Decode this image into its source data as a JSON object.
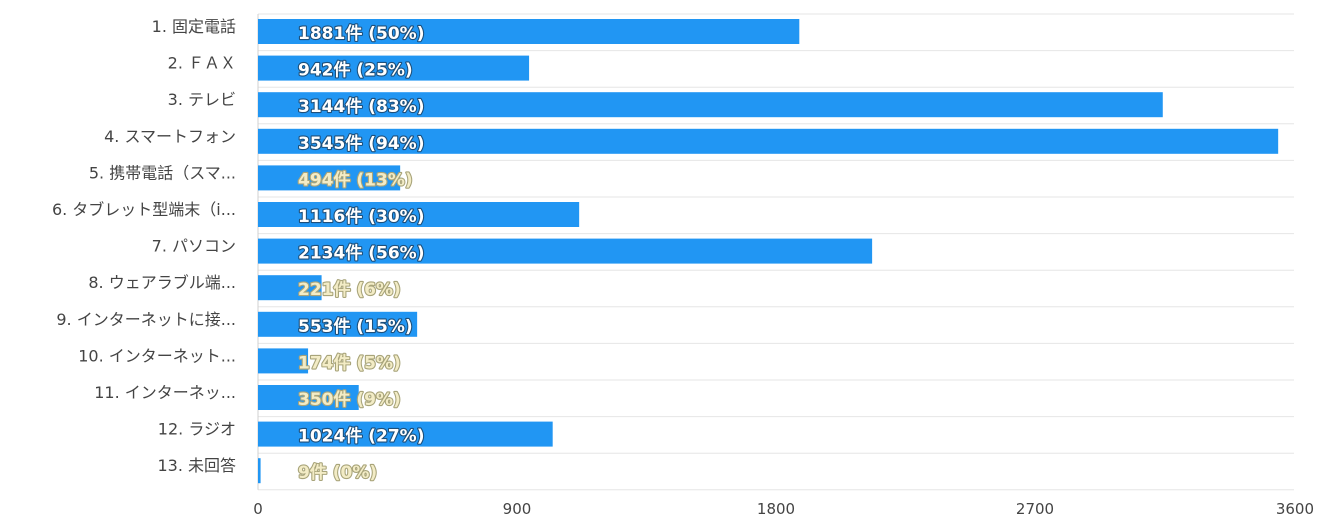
{
  "chart_data": {
    "type": "bar",
    "orientation": "horizontal",
    "categories": [
      "1. 固定電話",
      "2. ＦＡＸ",
      "3. テレビ",
      "4. スマートフォン",
      "5. 携帯電話（スマ...",
      "6. タブレット型端末（i...",
      "7. パソコン",
      "8. ウェアラブル端...",
      "9. インターネットに接...",
      "10. インターネット...",
      "11. インターネッ...",
      "12. ラジオ",
      "13. 未回答"
    ],
    "values": [
      1881,
      942,
      3144,
      3545,
      494,
      1116,
      2134,
      221,
      553,
      174,
      350,
      1024,
      9
    ],
    "data_labels": [
      "1881件 (50%)",
      "942件 (25%)",
      "3144件 (83%)",
      "3545件 (94%)",
      "494件 (13%)",
      "1116件 (30%)",
      "2134件 (56%)",
      "221件 (6%)",
      "553件 (15%)",
      "174件 (5%)",
      "350件 (9%)",
      "1024件 (27%)",
      "9件 (0%)"
    ],
    "xlim": [
      0,
      3600
    ],
    "xticks": [
      "0",
      "900",
      "1800",
      "2700",
      "3600"
    ],
    "grid": true,
    "bar_color": "#2196f3",
    "title": "",
    "xlabel": "",
    "ylabel": ""
  }
}
